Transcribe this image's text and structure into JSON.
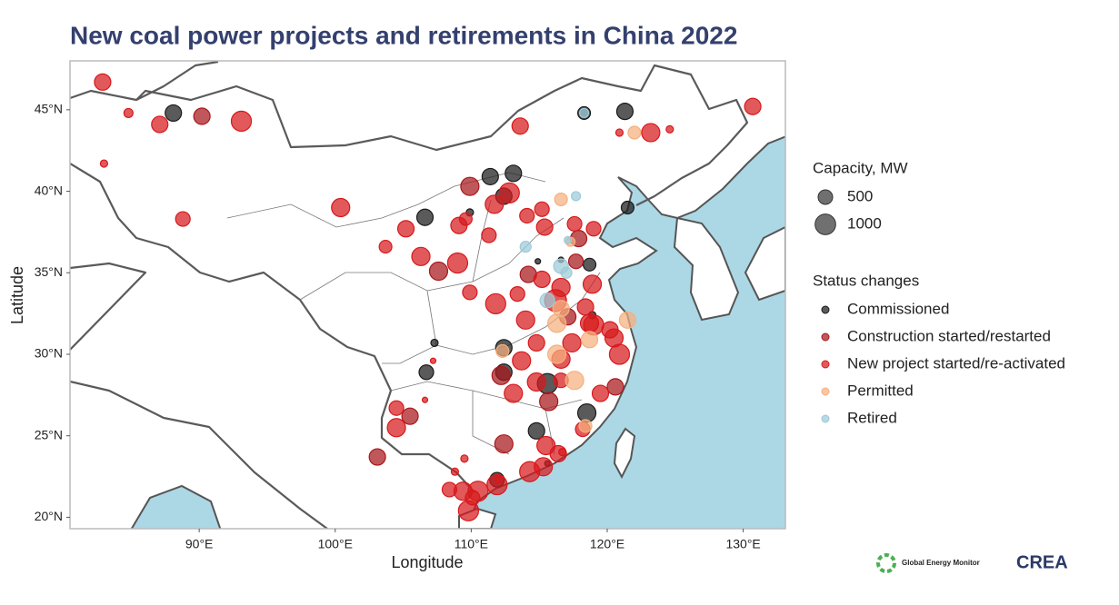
{
  "chart_data": {
    "type": "scatter",
    "title": "New coal power projects and retirements in China 2022",
    "x_label": "Longitude",
    "y_label": "Latitude",
    "xlim": [
      80.5,
      133.1
    ],
    "ylim": [
      19.3,
      48.0
    ],
    "xticks": [
      {
        "value": 90,
        "label": "90°E"
      },
      {
        "value": 100,
        "label": "100°E"
      },
      {
        "value": 110,
        "label": "110°E"
      },
      {
        "value": 120,
        "label": "120°E"
      },
      {
        "value": 130,
        "label": "130°E"
      }
    ],
    "yticks": [
      {
        "value": 20,
        "label": "20°N"
      },
      {
        "value": 25,
        "label": "25°N"
      },
      {
        "value": 30,
        "label": "30°N"
      },
      {
        "value": 35,
        "label": "35°N"
      },
      {
        "value": 40,
        "label": "40°N"
      },
      {
        "value": 45,
        "label": "45°N"
      }
    ],
    "size_legend": {
      "title": "Capacity, MW",
      "values": [
        500,
        1000
      ]
    },
    "legend_title": "Status changes",
    "footer_logos": [
      "Global Energy Monitor",
      "CREA"
    ],
    "series": [
      {
        "name": "Commissioned",
        "color": "#1a1a1a",
        "x": [
          88.1,
          106.6,
          111.4,
          113.1,
          112.4,
          121.3,
          118.3,
          121.5,
          118.7,
          112.4,
          112.4,
          106.7,
          115.6,
          114.8,
          118.5,
          111.9,
          107.3,
          109.9,
          116.6,
          114.9,
          118.9,
          115.6
        ],
        "y": [
          44.8,
          38.4,
          40.9,
          41.1,
          39.7,
          44.9,
          44.8,
          39.0,
          35.5,
          30.4,
          28.9,
          28.9,
          28.2,
          25.3,
          26.4,
          22.3,
          30.7,
          38.7,
          35.8,
          35.7,
          32.4,
          23.3
        ],
        "sizes": [
          630,
          630,
          630,
          630,
          630,
          630,
          380,
          380,
          380,
          630,
          630,
          500,
          950,
          630,
          780,
          500,
          125,
          125,
          70,
          70,
          125,
          70
        ]
      },
      {
        "name": "Construction started/restarted",
        "color": "#a8181c",
        "x": [
          90.2,
          109.9,
          107.6,
          112.2,
          112.4,
          105.5,
          117.9,
          115.7,
          120.6,
          114.2,
          103.1,
          117.7,
          117.1
        ],
        "y": [
          44.6,
          40.3,
          35.1,
          28.7,
          24.5,
          26.2,
          37.1,
          27.1,
          28.0,
          34.9,
          23.7,
          35.7,
          32.3
        ],
        "sizes": [
          630,
          780,
          780,
          780,
          780,
          630,
          630,
          780,
          630,
          630,
          630,
          500,
          630
        ]
      },
      {
        "name": "New project started/re-activated",
        "color": "#d7191c",
        "x": [
          82.9,
          84.8,
          87.1,
          93.1,
          83.0,
          88.8,
          100.4,
          103.7,
          105.2,
          106.3,
          109.0,
          113.6,
          109.9,
          111.8,
          113.4,
          114.0,
          114.8,
          113.7,
          113.1,
          114.8,
          116.6,
          117.4,
          118.4,
          116.2,
          116.6,
          115.2,
          118.9,
          119.0,
          120.2,
          120.5,
          120.9,
          119.5,
          118.2,
          115.5,
          116.4,
          115.3,
          114.3,
          111.9,
          110.5,
          109.4,
          110.1,
          108.4,
          109.8,
          104.5,
          104.5,
          107.2,
          106.6,
          109.5,
          108.8,
          111.7,
          112.8,
          114.1,
          115.2,
          115.4,
          117.6,
          119.0,
          123.2,
          124.6,
          130.7,
          120.9,
          111.3,
          109.1,
          109.6,
          116.6,
          118.7,
          112.0,
          116.7
        ],
        "y": [
          46.7,
          44.8,
          44.1,
          44.3,
          41.7,
          38.3,
          39.0,
          36.6,
          37.7,
          36.0,
          35.6,
          44.0,
          33.8,
          33.1,
          33.7,
          32.1,
          30.7,
          29.6,
          27.6,
          28.3,
          28.4,
          30.7,
          32.9,
          33.3,
          34.1,
          34.6,
          34.3,
          31.8,
          31.5,
          31.0,
          30.0,
          27.6,
          25.4,
          24.4,
          23.9,
          23.1,
          22.8,
          22.0,
          21.6,
          21.6,
          21.2,
          21.7,
          20.4,
          26.7,
          25.5,
          29.6,
          27.2,
          23.6,
          22.8,
          39.2,
          39.9,
          38.5,
          38.9,
          37.8,
          38.0,
          37.7,
          43.6,
          43.8,
          45.2,
          43.6,
          37.3,
          37.9,
          38.3,
          29.7,
          31.9,
          22.3,
          24.0
        ],
        "sizes": [
          630,
          195,
          630,
          950,
          125,
          500,
          780,
          380,
          630,
          780,
          950,
          630,
          500,
          950,
          500,
          780,
          630,
          780,
          780,
          780,
          500,
          780,
          630,
          1120,
          780,
          630,
          780,
          950,
          630,
          780,
          950,
          630,
          500,
          780,
          630,
          780,
          950,
          950,
          950,
          780,
          500,
          500,
          950,
          500,
          780,
          70,
          70,
          125,
          125,
          780,
          950,
          500,
          500,
          630,
          500,
          500,
          780,
          125,
          630,
          125,
          500,
          630,
          380,
          780,
          780,
          125,
          125
        ]
      },
      {
        "name": "Permitted",
        "color": "#f5b07e",
        "x": [
          122.0,
          116.6,
          116.3,
          116.6,
          116.3,
          117.6,
          118.7,
          121.5,
          112.3,
          118.4,
          117.3
        ],
        "y": [
          43.6,
          39.5,
          31.9,
          32.8,
          30.0,
          28.4,
          30.9,
          32.1,
          30.2,
          25.6,
          36.9
        ],
        "sizes": [
          380,
          380,
          780,
          630,
          780,
          780,
          630,
          630,
          380,
          380,
          195
        ]
      },
      {
        "name": "Retired",
        "color": "#9ccad8",
        "x": [
          118.3,
          117.7,
          114.0,
          116.6,
          117.1,
          117.0,
          115.6
        ],
        "y": [
          44.8,
          39.7,
          36.6,
          35.4,
          37.0,
          35.0,
          33.3
        ],
        "sizes": [
          195,
          195,
          280,
          500,
          125,
          280,
          500
        ]
      }
    ]
  }
}
